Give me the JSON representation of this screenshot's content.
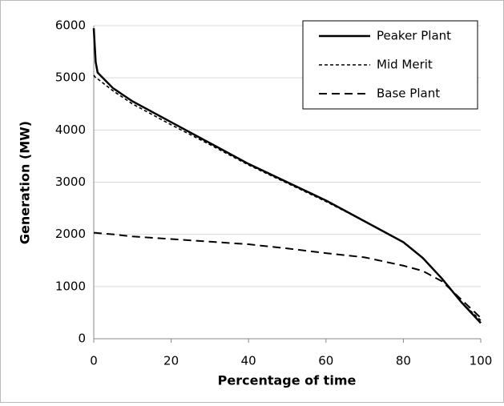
{
  "chart_data": {
    "type": "line",
    "xlabel": "Percentage of time",
    "ylabel": "Generation (MW)",
    "x": [
      0,
      0.5,
      1,
      5,
      10,
      20,
      30,
      40,
      50,
      60,
      70,
      80,
      85,
      90,
      95,
      100
    ],
    "series": [
      {
        "name": "Peaker Plant",
        "color": "#000000",
        "line_style": "solid",
        "values": [
          5950,
          5300,
          5100,
          4800,
          4550,
          4150,
          3750,
          3350,
          3000,
          2650,
          2250,
          1850,
          1550,
          1150,
          700,
          300
        ]
      },
      {
        "name": "Mid Merit",
        "color": "#000000",
        "line_style": "dotted",
        "values": [
          5050,
          5000,
          4980,
          4750,
          4500,
          4100,
          3720,
          3330,
          2980,
          2630,
          2250,
          1850,
          1550,
          1150,
          700,
          350
        ]
      },
      {
        "name": "Base Plant",
        "color": "#000000",
        "line_style": "dashed",
        "values": [
          2030,
          2030,
          2025,
          2000,
          1960,
          1910,
          1860,
          1810,
          1730,
          1640,
          1560,
          1400,
          1300,
          1100,
          750,
          400
        ]
      }
    ],
    "xlim": [
      0,
      100
    ],
    "xticks": [
      0,
      20,
      40,
      60,
      80,
      100
    ],
    "ylim": [
      0,
      6000
    ],
    "yticks": [
      0,
      1000,
      2000,
      3000,
      4000,
      5000,
      6000
    ],
    "grid": true,
    "legend": "upper right"
  }
}
